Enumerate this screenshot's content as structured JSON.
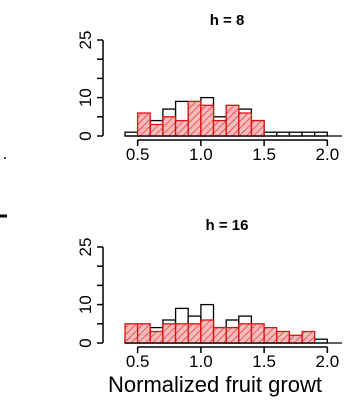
{
  "chart_data": [
    {
      "type": "histogram",
      "title": "h =  8",
      "xlim": [
        0.4,
        2.1
      ],
      "ylim": [
        0,
        25
      ],
      "bin_width": 0.1,
      "x_ticks": [
        "0.5",
        "1.0",
        "1.5",
        "2.0"
      ],
      "y_ticks": [
        "0",
        "10",
        "25"
      ],
      "series": [
        {
          "style": "open",
          "bins": [
            {
              "start": 0.4,
              "count": 1
            },
            {
              "start": 0.5,
              "count": 2
            },
            {
              "start": 0.6,
              "count": 4
            },
            {
              "start": 0.7,
              "count": 7
            },
            {
              "start": 0.8,
              "count": 9
            },
            {
              "start": 0.9,
              "count": 8
            },
            {
              "start": 1.0,
              "count": 10
            },
            {
              "start": 1.1,
              "count": 5
            },
            {
              "start": 1.2,
              "count": 6
            },
            {
              "start": 1.3,
              "count": 7
            },
            {
              "start": 1.4,
              "count": 4
            },
            {
              "start": 1.5,
              "count": 1
            },
            {
              "start": 1.6,
              "count": 1
            },
            {
              "start": 1.7,
              "count": 1
            },
            {
              "start": 1.8,
              "count": 1
            },
            {
              "start": 1.9,
              "count": 1
            }
          ]
        },
        {
          "style": "hatched",
          "bins": [
            {
              "start": 0.5,
              "count": 6
            },
            {
              "start": 0.6,
              "count": 3
            },
            {
              "start": 0.7,
              "count": 5
            },
            {
              "start": 0.8,
              "count": 4
            },
            {
              "start": 0.9,
              "count": 9
            },
            {
              "start": 1.0,
              "count": 8
            },
            {
              "start": 1.1,
              "count": 4
            },
            {
              "start": 1.2,
              "count": 8
            },
            {
              "start": 1.3,
              "count": 6
            },
            {
              "start": 1.4,
              "count": 4
            }
          ]
        }
      ]
    },
    {
      "type": "histogram",
      "title": "h =  16",
      "xlim": [
        0.4,
        2.1
      ],
      "ylim": [
        0,
        25
      ],
      "bin_width": 0.1,
      "x_ticks": [
        "0.5",
        "1.0",
        "1.5",
        "2.0"
      ],
      "y_ticks": [
        "0",
        "10",
        "25"
      ],
      "series": [
        {
          "style": "open",
          "bins": [
            {
              "start": 0.4,
              "count": 1
            },
            {
              "start": 0.5,
              "count": 2
            },
            {
              "start": 0.6,
              "count": 4
            },
            {
              "start": 0.7,
              "count": 6
            },
            {
              "start": 0.8,
              "count": 9
            },
            {
              "start": 0.9,
              "count": 7
            },
            {
              "start": 1.0,
              "count": 10
            },
            {
              "start": 1.1,
              "count": 4
            },
            {
              "start": 1.2,
              "count": 6
            },
            {
              "start": 1.3,
              "count": 7
            },
            {
              "start": 1.4,
              "count": 4
            },
            {
              "start": 1.5,
              "count": 1
            },
            {
              "start": 1.6,
              "count": 1
            },
            {
              "start": 1.7,
              "count": 1
            },
            {
              "start": 1.8,
              "count": 1
            },
            {
              "start": 1.9,
              "count": 1
            }
          ]
        },
        {
          "style": "hatched",
          "bins": [
            {
              "start": 0.4,
              "count": 5
            },
            {
              "start": 0.5,
              "count": 5
            },
            {
              "start": 0.6,
              "count": 3
            },
            {
              "start": 0.7,
              "count": 5
            },
            {
              "start": 0.8,
              "count": 5
            },
            {
              "start": 0.9,
              "count": 5
            },
            {
              "start": 1.0,
              "count": 6
            },
            {
              "start": 1.1,
              "count": 4
            },
            {
              "start": 1.2,
              "count": 4
            },
            {
              "start": 1.3,
              "count": 5
            },
            {
              "start": 1.4,
              "count": 5
            },
            {
              "start": 1.5,
              "count": 4
            },
            {
              "start": 1.6,
              "count": 3
            },
            {
              "start": 1.7,
              "count": 2
            },
            {
              "start": 1.8,
              "count": 3
            }
          ]
        }
      ]
    }
  ],
  "xlabel": "Normalized fruit growt",
  "colors": {
    "open_fill": "#ffffff",
    "open_stroke": "#000000",
    "hatched_fill": "#f5b8b8",
    "hatched_stroke": "#e01010",
    "axis": "#000000"
  }
}
